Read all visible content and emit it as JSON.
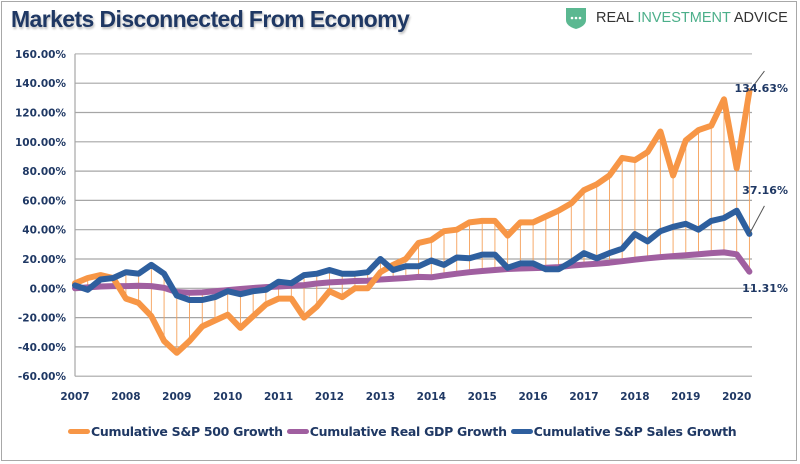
{
  "header": {
    "title": "Markets Disconnected From Economy",
    "logo": {
      "word1": "REAL",
      "word2": "INVESTMENT",
      "word3": "ADVICE",
      "icon": "shield-chat-icon",
      "color": "#5bb891"
    }
  },
  "chart_data": {
    "type": "line",
    "title": "Markets Disconnected From Economy",
    "xlabel": "",
    "ylabel": "",
    "x_start": "2007 Q1",
    "x_frequency": "quarterly",
    "x_ticks": [
      "2007",
      "2008",
      "2009",
      "2010",
      "2011",
      "2012",
      "2013",
      "2014",
      "2015",
      "2016",
      "2017",
      "2018",
      "2019",
      "2020"
    ],
    "y_ticks": [
      "160.00%",
      "140.00%",
      "120.00%",
      "100.00%",
      "80.00%",
      "60.00%",
      "40.00%",
      "20.00%",
      "0.00%",
      "-20.00%",
      "-40.00%",
      "-60.00%"
    ],
    "ylim": [
      -60,
      160
    ],
    "xlim": [
      2007,
      2020.25
    ],
    "grid": "horizontal",
    "high_low_lines": true,
    "legend_position": "bottom",
    "series": [
      {
        "name": "Cumulative S&P 500 Growth",
        "color": "#f79646",
        "values": [
          3.4,
          7,
          9,
          7,
          -7,
          -10,
          -19,
          -36,
          -44,
          -36,
          -26,
          -22,
          -18,
          -27,
          -19,
          -11,
          -7,
          -7,
          -20,
          -12.5,
          -2,
          -6,
          0,
          0,
          11,
          16,
          20,
          31,
          33,
          39,
          40,
          45,
          46,
          46,
          36,
          45,
          45,
          49,
          53,
          58,
          67,
          71,
          77,
          89,
          87.5,
          93,
          107,
          77,
          101,
          108,
          111,
          129,
          82,
          134.63
        ],
        "end_label": "134.63%"
      },
      {
        "name": "Cumulative Real GDP Growth",
        "color": "#a05fa0",
        "values": [
          0,
          0.6,
          1.2,
          1.5,
          1.5,
          1.8,
          1.5,
          0.3,
          -2.5,
          -3,
          -2.8,
          -2,
          -1.2,
          -0.5,
          0.2,
          0.8,
          1.2,
          1.8,
          2.2,
          3.3,
          4,
          4.5,
          5,
          5.2,
          6,
          6.5,
          7,
          7.8,
          7.5,
          8.8,
          10,
          11,
          11.8,
          12.5,
          13.2,
          13.5,
          13.8,
          14,
          14.5,
          15.5,
          16.2,
          16.8,
          17.5,
          18.5,
          19.5,
          20.5,
          21.3,
          22,
          22.5,
          23.2,
          24,
          24.5,
          23.2,
          11.31
        ],
        "end_label": "11.31%"
      },
      {
        "name": "Cumulative S&P Sales Growth",
        "color": "#2e5f9e",
        "values": [
          2,
          -1,
          6,
          7,
          11,
          10,
          16,
          10,
          -5,
          -8,
          -8,
          -6,
          -2,
          -4,
          -2,
          -1,
          4.5,
          3.5,
          9,
          10,
          12.5,
          10,
          10,
          11,
          20,
          12.5,
          15,
          15,
          19,
          16,
          21,
          20.5,
          23,
          23,
          14,
          17,
          17,
          13,
          13,
          18,
          24,
          20.5,
          24,
          27,
          37,
          32,
          39,
          42,
          44,
          40,
          46,
          48,
          53,
          37.16
        ],
        "end_label": "37.16%"
      }
    ]
  }
}
